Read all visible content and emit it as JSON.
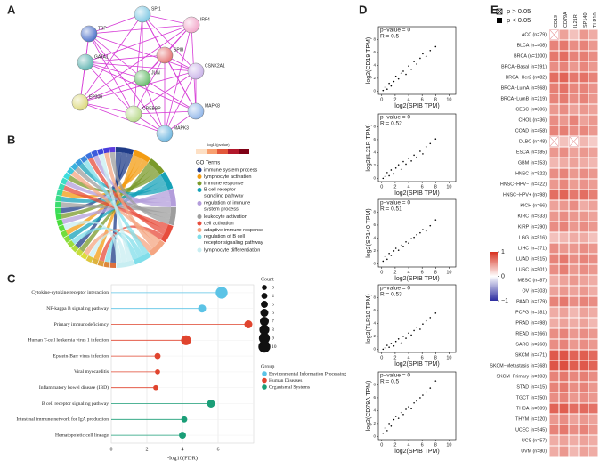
{
  "panel_labels": [
    "A",
    "B",
    "C",
    "D",
    "E"
  ],
  "network": {
    "nodes": [
      "SPI1",
      "IRF4",
      "TBP",
      "SPIB",
      "CSNK2A1",
      "GATA1",
      "JUN",
      "EP300",
      "MAPK8",
      "CREBBP",
      "MAPK3"
    ]
  },
  "chord": {
    "scale_title": "-log10(pvalue)",
    "legend_title": "GO Terms",
    "terms": [
      {
        "name": "immune system process",
        "color": "#1f3c88"
      },
      {
        "name": "lymphocyte activation",
        "color": "#f39c12"
      },
      {
        "name": "immune response",
        "color": "#7a9a2a"
      },
      {
        "name": "B cell receptor signaling pathway",
        "color": "#17a2b8"
      },
      {
        "name": "regulation of immune system process",
        "color": "#b39ddb"
      },
      {
        "name": "leukocyte activation",
        "color": "#9e9e9e"
      },
      {
        "name": "cell activation",
        "color": "#e74c3c"
      },
      {
        "name": "adaptive immune response",
        "color": "#f4a582"
      },
      {
        "name": "regulation of B cell receptor signaling pathway",
        "color": "#80deea"
      },
      {
        "name": "lymphocyte differentiation",
        "color": "#c8eef2"
      }
    ]
  },
  "chart_data": [
    {
      "type": "lollipop",
      "xlabel": "-log10(FDR)",
      "categories": [
        "Cytokine-cytokine receptor interaction",
        "NF-kappa B signaling pathway",
        "Primary immunodeficiency",
        "Human T-cell leukemia virus 1 infection",
        "Epstein-Barr virus infection",
        "Viral myocarditis",
        "Inflammatory bowel disease (IBD)",
        "B cell receptor signaling pathway",
        "Intestinal immune network for IgA production",
        "Hematopoietic cell lineage"
      ],
      "xlim": [
        0,
        8
      ],
      "xticks": [
        0,
        2,
        4,
        6
      ],
      "size_title": "Count",
      "size_ticks": [
        3,
        4,
        5,
        6,
        7,
        8,
        9,
        10
      ],
      "legend_title": "Group",
      "series": [
        {
          "name": "Environmental Information Processing",
          "color": "#5bc3e6",
          "values": [
            6.2,
            5.1,
            null,
            null,
            null,
            null,
            null,
            null,
            null,
            null
          ],
          "sizes": [
            10,
            6,
            null,
            null,
            null,
            null,
            null,
            null,
            null,
            null
          ]
        },
        {
          "name": "Human Diseases",
          "color": "#e0442e",
          "values": [
            null,
            null,
            7.7,
            4.2,
            2.6,
            2.6,
            2.5,
            null,
            null,
            null
          ],
          "sizes": [
            null,
            null,
            6,
            8,
            4,
            3,
            3,
            null,
            null,
            null
          ]
        },
        {
          "name": "Organismal Systems",
          "color": "#1a9e77",
          "values": [
            null,
            null,
            null,
            null,
            null,
            null,
            null,
            5.6,
            4.1,
            4.0
          ],
          "sizes": [
            null,
            null,
            null,
            null,
            null,
            null,
            null,
            6,
            4,
            5
          ]
        }
      ]
    },
    {
      "type": "scatter",
      "annotations": [
        "p−value = 0",
        "R = 0.5"
      ],
      "xlabel": "log2(SPIB TPM)",
      "ylabel": "log2(CD19 TPM)",
      "color": "#000000",
      "xlim": [
        -0.5,
        11
      ],
      "ylim": [
        -0.5,
        10
      ],
      "xticks": [
        0,
        2,
        4,
        6,
        8,
        10
      ],
      "yticks": [
        0,
        2,
        4,
        6,
        8
      ],
      "x": [
        0.2,
        0.5,
        0.8,
        1.1,
        1.4,
        1.8,
        2.1,
        2.5,
        2.9,
        3.2,
        3.6,
        4.0,
        4.4,
        4.8,
        5.2,
        5.7,
        6.1,
        6.6,
        7.2,
        8.0
      ],
      "y": [
        0.1,
        0.6,
        0.3,
        1.2,
        0.8,
        1.5,
        2.3,
        1.9,
        2.8,
        3.1,
        2.6,
        3.9,
        3.4,
        4.6,
        4.2,
        5.1,
        5.8,
        5.4,
        6.3,
        6.9
      ]
    },
    {
      "type": "scatter",
      "annotations": [
        "p−value = 0",
        "R = 0.52"
      ],
      "xlabel": "log2(SPIB TPM)",
      "ylabel": "log2(IL21R TPM)",
      "color": "#000000",
      "xlim": [
        -0.5,
        11
      ],
      "ylim": [
        -0.5,
        10
      ],
      "xticks": [
        0,
        2,
        4,
        6,
        8,
        10
      ],
      "yticks": [
        0,
        2,
        4,
        6,
        8
      ],
      "x": [
        0.2,
        0.5,
        0.8,
        1.1,
        1.4,
        1.8,
        2.1,
        2.5,
        2.9,
        3.2,
        3.6,
        4.0,
        4.4,
        4.8,
        5.2,
        5.7,
        6.1,
        6.6,
        7.2,
        8.0
      ],
      "y": [
        0.0,
        0.3,
        0.9,
        0.4,
        1.3,
        0.7,
        1.6,
        2.1,
        1.4,
        2.6,
        2.2,
        3.1,
        2.7,
        3.6,
        3.3,
        4.2,
        3.8,
        4.9,
        5.4,
        6.1
      ]
    },
    {
      "type": "scatter",
      "annotations": [
        "p−value = 0",
        "R = 0.51"
      ],
      "xlabel": "log2(SPIB TPM)",
      "ylabel": "log2(SP140 TPM)",
      "color": "#000000",
      "xlim": [
        -0.5,
        11
      ],
      "ylim": [
        -0.5,
        10
      ],
      "xticks": [
        0,
        2,
        4,
        6,
        8,
        10
      ],
      "yticks": [
        0,
        2,
        4,
        6,
        8
      ],
      "x": [
        0.2,
        0.5,
        0.8,
        1.1,
        1.4,
        1.8,
        2.1,
        2.5,
        2.9,
        3.2,
        3.6,
        4.0,
        4.4,
        4.8,
        5.2,
        5.7,
        6.1,
        6.6,
        7.2,
        8.0
      ],
      "y": [
        0.4,
        1.1,
        0.7,
        1.6,
        1.3,
        2.0,
        2.4,
        2.1,
        2.9,
        2.7,
        3.4,
        3.2,
        3.9,
        4.1,
        4.5,
        4.8,
        5.3,
        5.1,
        5.9,
        6.8
      ]
    },
    {
      "type": "scatter",
      "annotations": [
        "p−value = 0",
        "R = 0.53"
      ],
      "xlabel": "log2(SPIB TPM)",
      "ylabel": "log2(TLR10 TPM)",
      "color": "#000000",
      "xlim": [
        -0.5,
        11
      ],
      "ylim": [
        -0.5,
        10
      ],
      "xticks": [
        0,
        2,
        4,
        6,
        8,
        10
      ],
      "yticks": [
        0,
        2,
        4,
        6,
        8
      ],
      "x": [
        0.2,
        0.5,
        0.8,
        1.1,
        1.4,
        1.8,
        2.1,
        2.5,
        2.9,
        3.2,
        3.6,
        4.0,
        4.4,
        4.8,
        5.2,
        5.7,
        6.1,
        6.6,
        7.2,
        8.0
      ],
      "y": [
        0.0,
        0.2,
        0.6,
        0.3,
        0.9,
        0.5,
        1.2,
        1.6,
        1.0,
        2.0,
        1.7,
        2.5,
        2.2,
        2.9,
        3.4,
        3.1,
        3.9,
        4.4,
        4.9,
        5.6
      ]
    },
    {
      "type": "scatter",
      "annotations": [
        "p−value = 0",
        "R = 0.5"
      ],
      "xlabel": "log2(SPIB TPM)",
      "ylabel": "log2(CD79A TPM)",
      "color": "#000000",
      "xlim": [
        -0.5,
        11
      ],
      "ylim": [
        -0.5,
        10
      ],
      "xticks": [
        0,
        2,
        4,
        6,
        8,
        10
      ],
      "yticks": [
        0,
        2,
        4,
        6,
        8
      ],
      "x": [
        0.2,
        0.5,
        0.8,
        1.1,
        1.4,
        1.8,
        2.1,
        2.5,
        2.9,
        3.2,
        3.6,
        4.0,
        4.4,
        4.8,
        5.2,
        5.7,
        6.1,
        6.6,
        7.2,
        8.0
      ],
      "y": [
        0.5,
        1.3,
        0.9,
        2.0,
        1.6,
        2.6,
        3.1,
        2.8,
        3.7,
        3.4,
        4.2,
        4.6,
        4.3,
        5.2,
        5.5,
        6.0,
        6.4,
        6.9,
        7.5,
        8.6
      ]
    },
    {
      "type": "heatmap",
      "legend": [
        "p > 0.05",
        "p < 0.05"
      ],
      "columns": [
        "CD19",
        "CD79A",
        "IL21R",
        "SP140",
        "TLR10"
      ],
      "rows": [
        "ACC (n=79)",
        "BLCA (n=408)",
        "BRCA (n=1100)",
        "BRCA−Basal (n=191)",
        "BRCA−Her2 (n=82)",
        "BRCA−LumA (n=568)",
        "BRCA−LumB (n=219)",
        "CESC (n=306)",
        "CHOL (n=36)",
        "COAD (n=458)",
        "DLBC (n=48)",
        "ESCA (n=185)",
        "GBM (n=153)",
        "HNSC (n=522)",
        "HNSC−HPV− (n=422)",
        "HNSC−HPV+ (n=98)",
        "KICH (n=66)",
        "KIRC (n=533)",
        "KIRP (n=290)",
        "LGG (n=516)",
        "LIHC (n=371)",
        "LUAD (n=515)",
        "LUSC (n=501)",
        "MESO (n=87)",
        "OV (n=303)",
        "PAAD (n=179)",
        "PCPG (n=181)",
        "PRAD (n=498)",
        "READ (n=166)",
        "SARC (n=260)",
        "SKCM (n=471)",
        "SKCM−Metastasis (n=368)",
        "SKCM−Primary (n=103)",
        "STAD (n=415)",
        "TGCT (n=150)",
        "THCA (n=509)",
        "THYM (n=120)",
        "UCEC (n=545)",
        "UCS (n=57)",
        "UVM (n=80)"
      ],
      "values": [
        [
          0.1,
          0.45,
          0.3,
          0.5,
          0.4
        ],
        [
          0.6,
          0.65,
          0.55,
          0.6,
          0.5
        ],
        [
          0.65,
          0.7,
          0.6,
          0.62,
          0.55
        ],
        [
          0.55,
          0.6,
          0.5,
          0.58,
          0.5
        ],
        [
          0.7,
          0.75,
          0.65,
          0.68,
          0.6
        ],
        [
          0.62,
          0.68,
          0.58,
          0.6,
          0.52
        ],
        [
          0.6,
          0.64,
          0.55,
          0.6,
          0.5
        ],
        [
          0.5,
          0.55,
          0.45,
          0.5,
          0.45
        ],
        [
          0.55,
          0.5,
          0.6,
          0.45,
          0.5
        ],
        [
          0.6,
          0.62,
          0.55,
          0.58,
          0.5
        ],
        [
          0.05,
          0.3,
          0.02,
          0.35,
          0.25
        ],
        [
          0.5,
          0.55,
          0.45,
          0.5,
          0.45
        ],
        [
          0.35,
          0.4,
          0.45,
          0.4,
          0.35
        ],
        [
          0.55,
          0.6,
          0.5,
          0.55,
          0.5
        ],
        [
          0.5,
          0.58,
          0.48,
          0.52,
          0.48
        ],
        [
          0.7,
          0.75,
          0.65,
          0.7,
          0.62
        ],
        [
          0.45,
          0.5,
          0.55,
          0.4,
          0.45
        ],
        [
          0.5,
          0.55,
          0.5,
          0.5,
          0.45
        ],
        [
          0.55,
          0.6,
          0.5,
          0.55,
          0.5
        ],
        [
          0.3,
          0.35,
          0.4,
          0.4,
          0.3
        ],
        [
          0.55,
          0.5,
          0.5,
          0.55,
          0.5
        ],
        [
          0.6,
          0.65,
          0.55,
          0.6,
          0.55
        ],
        [
          0.55,
          0.62,
          0.5,
          0.55,
          0.5
        ],
        [
          0.4,
          0.45,
          0.5,
          0.45,
          0.4
        ],
        [
          0.45,
          0.5,
          0.45,
          0.5,
          0.4
        ],
        [
          0.6,
          0.65,
          0.55,
          0.6,
          0.55
        ],
        [
          0.4,
          0.45,
          0.35,
          0.45,
          0.4
        ],
        [
          0.4,
          0.45,
          0.4,
          0.45,
          0.35
        ],
        [
          0.55,
          0.6,
          0.5,
          0.55,
          0.5
        ],
        [
          0.55,
          0.6,
          0.5,
          0.55,
          0.5
        ],
        [
          0.8,
          0.82,
          0.75,
          0.78,
          0.72
        ],
        [
          0.82,
          0.85,
          0.78,
          0.8,
          0.75
        ],
        [
          0.6,
          0.65,
          0.58,
          0.62,
          0.55
        ],
        [
          0.6,
          0.65,
          0.55,
          0.6,
          0.5
        ],
        [
          0.55,
          0.6,
          0.5,
          0.55,
          0.5
        ],
        [
          0.75,
          0.78,
          0.7,
          0.72,
          0.68
        ],
        [
          0.5,
          0.55,
          0.45,
          0.5,
          0.45
        ],
        [
          0.6,
          0.65,
          0.55,
          0.6,
          0.5
        ],
        [
          0.4,
          0.45,
          0.4,
          0.45,
          0.4
        ],
        [
          0.4,
          0.5,
          0.35,
          0.45,
          0.4
        ]
      ],
      "crossed": [
        [
          0,
          0
        ],
        [
          10,
          0
        ],
        [
          10,
          2
        ]
      ],
      "clim": [
        -1,
        1
      ],
      "cticks": [
        1,
        0,
        {
          "value": -1,
          "label": "−1"
        }
      ],
      "low_color": "#2c2ca0",
      "mid_color": "#ffffff",
      "high_color": "#d7301f"
    }
  ]
}
